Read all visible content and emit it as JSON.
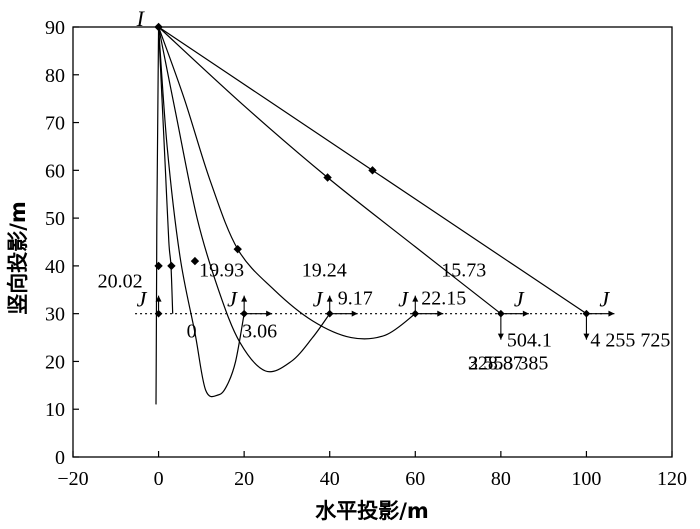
{
  "chart_data": {
    "type": "line",
    "xlabel": "水平投影/m",
    "ylabel": "竖向投影/m",
    "xlim": [
      -20,
      120
    ],
    "ylim": [
      0,
      90
    ],
    "xticks": [
      -20,
      0,
      20,
      40,
      60,
      80,
      100,
      120
    ],
    "yticks": [
      0,
      10,
      20,
      30,
      40,
      50,
      60,
      70,
      80,
      90
    ],
    "point_I": {
      "label": "I",
      "x": 0,
      "y": 90
    },
    "reference_line": {
      "y": 30,
      "style": "dotted"
    },
    "series": [
      {
        "points": [
          [
            0,
            90
          ],
          [
            -0.1,
            80
          ],
          [
            -0.2,
            70
          ],
          [
            -0.3,
            60
          ],
          [
            -0.4,
            50
          ],
          [
            -0.45,
            40
          ],
          [
            -0.5,
            30
          ],
          [
            -0.55,
            20
          ],
          [
            -0.6,
            11
          ]
        ]
      },
      {
        "points": [
          [
            0,
            90
          ],
          [
            0.8,
            75
          ],
          [
            1.6,
            60
          ],
          [
            2.4,
            45
          ],
          [
            2.9,
            40
          ],
          [
            3.3,
            30
          ]
        ]
      },
      {
        "points": [
          [
            0,
            90
          ],
          [
            2,
            65
          ],
          [
            5,
            42
          ],
          [
            8.5,
            26
          ],
          [
            11,
            14
          ],
          [
            14,
            13
          ],
          [
            16,
            15
          ],
          [
            18,
            20
          ],
          [
            20,
            30
          ]
        ]
      },
      {
        "points": [
          [
            0,
            90
          ],
          [
            4,
            72
          ],
          [
            9,
            50
          ],
          [
            14,
            35
          ],
          [
            19,
            24
          ],
          [
            25,
            18
          ],
          [
            31,
            20
          ],
          [
            36,
            25
          ],
          [
            40,
            30
          ]
        ]
      },
      {
        "points": [
          [
            0,
            90
          ],
          [
            6,
            75
          ],
          [
            12,
            58
          ],
          [
            18.5,
            43.5
          ],
          [
            27,
            35
          ],
          [
            36,
            28.5
          ],
          [
            45,
            25
          ],
          [
            53,
            25.5
          ],
          [
            60,
            30
          ]
        ]
      },
      {
        "points": [
          [
            0,
            90
          ],
          [
            20,
            73.5
          ],
          [
            39.5,
            58.5
          ],
          [
            60,
            44
          ],
          [
            80,
            30
          ]
        ]
      },
      {
        "points": [
          [
            0,
            90
          ],
          [
            25,
            75
          ],
          [
            50,
            60
          ],
          [
            75,
            45
          ],
          [
            100,
            30
          ]
        ]
      }
    ],
    "markers": [
      {
        "x": 0,
        "y": 90
      },
      {
        "x": 0,
        "y": 40
      },
      {
        "x": 3,
        "y": 40
      },
      {
        "x": 8.5,
        "y": 41
      },
      {
        "x": 18.5,
        "y": 43.5
      },
      {
        "x": 39.5,
        "y": 58.5
      },
      {
        "x": 50,
        "y": 60
      }
    ],
    "j_points": [
      {
        "label": "J",
        "x": 0,
        "y": 30
      },
      {
        "label": "J",
        "x": 20,
        "y": 30
      },
      {
        "label": "J",
        "x": 40,
        "y": 30
      },
      {
        "label": "J",
        "x": 60,
        "y": 30
      },
      {
        "label": "J",
        "x": 80,
        "y": 30
      },
      {
        "label": "J",
        "x": 100,
        "y": 30
      }
    ],
    "force_annotations": [
      {
        "text": "20.02",
        "x": 0,
        "y": 30,
        "direction": "up"
      },
      {
        "text": "0",
        "x": 0,
        "y": 30,
        "direction": "right"
      },
      {
        "text": "19.93",
        "x": 20,
        "y": 30,
        "direction": "up"
      },
      {
        "text": "3.06",
        "x": 20,
        "y": 30,
        "direction": "right"
      },
      {
        "text": "19.24",
        "x": 40,
        "y": 30,
        "direction": "up"
      },
      {
        "text": "9.17",
        "x": 40,
        "y": 30,
        "direction": "right"
      },
      {
        "text": "15.73",
        "x": 60,
        "y": 30,
        "direction": "up"
      },
      {
        "text": "22.15",
        "x": 60,
        "y": 30,
        "direction": "right"
      },
      {
        "text": "328.87",
        "x": 80,
        "y": 30,
        "direction": "down"
      },
      {
        "text": "504.1",
        "x": 80,
        "y": 30,
        "direction": "right"
      },
      {
        "text": "2 553 385",
        "x": 100,
        "y": 30,
        "direction": "down"
      },
      {
        "text": "4 255 725",
        "x": 100,
        "y": 30,
        "direction": "right"
      }
    ]
  }
}
